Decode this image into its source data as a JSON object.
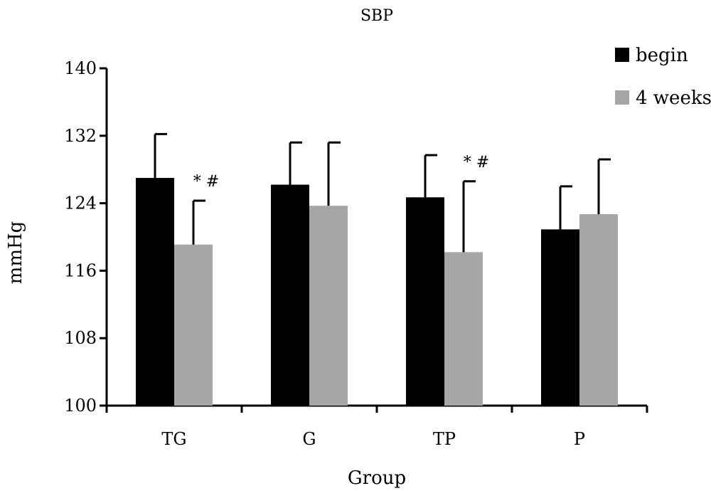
{
  "chart_data": {
    "type": "bar",
    "title": "SBP",
    "xlabel": "Group",
    "ylabel": "mmHg",
    "ylim": [
      100,
      140
    ],
    "yticks": [
      100,
      108,
      116,
      124,
      132,
      140
    ],
    "categories": [
      "TG",
      "G",
      "TP",
      "P"
    ],
    "series": [
      {
        "name": "begin",
        "color": "#000000",
        "values": [
          127.0,
          126.2,
          124.7,
          120.9
        ],
        "errors": [
          5.2,
          5.0,
          5.0,
          5.1
        ]
      },
      {
        "name": "4 weeks",
        "color": "#a6a6a6",
        "values": [
          119.1,
          123.7,
          118.2,
          122.7
        ],
        "errors": [
          5.2,
          7.5,
          8.4,
          6.5
        ]
      }
    ],
    "annotations": [
      {
        "category": "TG",
        "series": "4 weeks",
        "text": "* #"
      },
      {
        "category": "TP",
        "series": "4 weeks",
        "text": "* #"
      }
    ],
    "legend_position": "top-right",
    "grid": false
  }
}
